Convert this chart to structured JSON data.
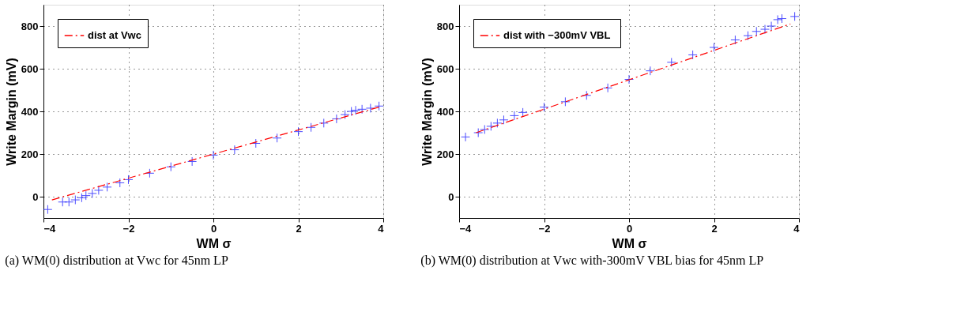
{
  "chart_data": [
    {
      "type": "scatter",
      "xlabel": "WM σ",
      "ylabel": "Write Margin (mV)",
      "xlim": [
        -4,
        4
      ],
      "ylim": [
        -100,
        900
      ],
      "xticks": [
        -4,
        -2,
        0,
        2,
        4
      ],
      "yticks": [
        0,
        200,
        400,
        600,
        800
      ],
      "grid": true,
      "legend": "top left",
      "annotations": [
        "(a) WM(0) distribution at Vwc for 45nm LP"
      ],
      "series": [
        {
          "color": "#0000ff",
          "marker": "cross",
          "x": [
            -3.9,
            -3.55,
            -3.4,
            -3.25,
            -3.1,
            -3.0,
            -2.85,
            -2.7,
            -2.5,
            -2.2,
            -2.0,
            -1.5,
            -1.0,
            -0.5,
            0,
            0.5,
            1.0,
            1.5,
            2.0,
            2.3,
            2.6,
            2.9,
            3.1,
            3.25,
            3.35,
            3.5,
            3.7,
            3.9
          ],
          "values": [
            -60,
            -25,
            -25,
            -15,
            -5,
            5,
            15,
            30,
            45,
            65,
            80,
            110,
            140,
            165,
            195,
            220,
            250,
            275,
            305,
            325,
            345,
            365,
            385,
            400,
            405,
            410,
            415,
            425
          ]
        },
        {
          "name": "dist at Vwc",
          "type": "line",
          "color": "#ff0000",
          "line_style": "dashdot",
          "x": [
            -3.8,
            3.9
          ],
          "values": [
            -15,
            420
          ]
        }
      ]
    },
    {
      "type": "scatter",
      "xlabel": "WM σ",
      "ylabel": "Write Margin (mV)",
      "xlim": [
        -4,
        4
      ],
      "ylim": [
        -100,
        900
      ],
      "xticks": [
        -4,
        -2,
        0,
        2,
        4
      ],
      "yticks": [
        0,
        200,
        400,
        600,
        800
      ],
      "grid": true,
      "legend": "top left",
      "annotations": [
        "(b) WM(0) distribution at Vwc with-300mV VBL bias for 45nm LP"
      ],
      "series": [
        {
          "color": "#0000ff",
          "marker": "cross",
          "x": [
            -3.85,
            -3.55,
            -3.4,
            -3.25,
            -3.1,
            -2.95,
            -2.7,
            -2.5,
            -2.0,
            -1.5,
            -1.0,
            -0.5,
            0,
            0.5,
            1.0,
            1.5,
            2.0,
            2.5,
            2.8,
            3.0,
            3.2,
            3.35,
            3.5,
            3.6,
            3.9
          ],
          "values": [
            280,
            300,
            315,
            330,
            345,
            360,
            380,
            395,
            420,
            445,
            475,
            510,
            550,
            590,
            630,
            665,
            700,
            735,
            755,
            775,
            785,
            800,
            830,
            835,
            845
          ]
        },
        {
          "name": "dist with  −300mV VBL",
          "type": "line",
          "color": "#ff0000",
          "line_style": "dashdot",
          "x": [
            -3.6,
            3.8
          ],
          "values": [
            300,
            810
          ]
        }
      ]
    }
  ]
}
